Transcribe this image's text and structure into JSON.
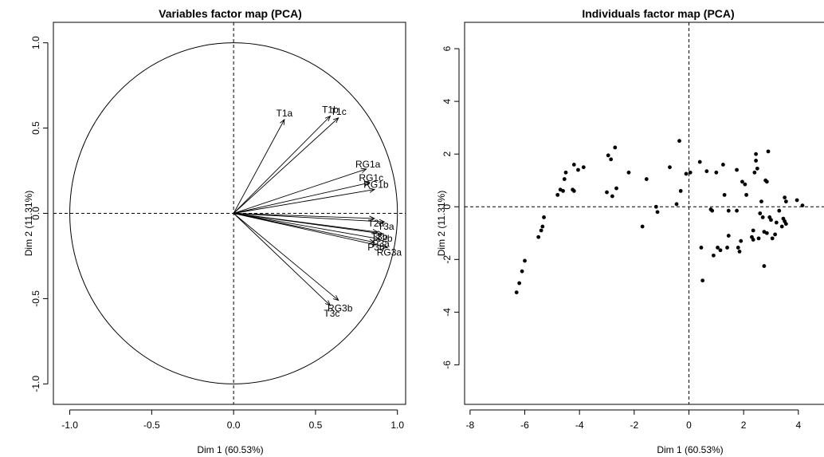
{
  "chart_data": [
    {
      "type": "scatter",
      "subtype": "pca-variables-correlation-circle",
      "title": "Variables factor map (PCA)",
      "xlabel": "Dim 1 (60.53%)",
      "ylabel": "Dim 2 (11.31%)",
      "xlim": [
        -1.1,
        1.05
      ],
      "ylim": [
        -1.12,
        1.12
      ],
      "x_ticks": [
        -1.0,
        -0.5,
        0.0,
        0.5,
        1.0
      ],
      "x_tick_labels": [
        "-1.0",
        "-0.5",
        "0.0",
        "0.5",
        "1.0"
      ],
      "y_ticks": [
        -1.0,
        -0.5,
        0.0,
        0.5,
        1.0
      ],
      "y_tick_labels": [
        "-1.0",
        "-0.5",
        "0.0",
        "0.5",
        "1.0"
      ],
      "grid": false,
      "legend": "none",
      "unit_circle": true,
      "reference_lines": [
        0,
        0
      ],
      "variables": [
        {
          "name": "T1a",
          "x": 0.31,
          "y": 0.55
        },
        {
          "name": "T1b",
          "x": 0.59,
          "y": 0.57
        },
        {
          "name": "T1c",
          "x": 0.64,
          "y": 0.56
        },
        {
          "name": "RG1a",
          "x": 0.81,
          "y": 0.26
        },
        {
          "name": "RG1c",
          "x": 0.83,
          "y": 0.18
        },
        {
          "name": "RG1b",
          "x": 0.86,
          "y": 0.14
        },
        {
          "name": "T2a",
          "x": 0.86,
          "y": -0.03
        },
        {
          "name": "T3a",
          "x": 0.92,
          "y": -0.05
        },
        {
          "name": "T3b",
          "x": 0.88,
          "y": -0.11
        },
        {
          "name": "T2b",
          "x": 0.91,
          "y": -0.12
        },
        {
          "name": "P3a",
          "x": 0.89,
          "y": -0.15
        },
        {
          "name": "P3b",
          "x": 0.86,
          "y": -0.17
        },
        {
          "name": "RG3a",
          "x": 0.94,
          "y": -0.2
        },
        {
          "name": "RG3b",
          "x": 0.64,
          "y": -0.51
        },
        {
          "name": "T3c",
          "x": 0.59,
          "y": -0.54
        }
      ]
    },
    {
      "type": "scatter",
      "title": "Individuals factor map (PCA)",
      "xlabel": "Dim 1 (60.53%)",
      "ylabel": "Dim 2 (11.31%)",
      "xlim": [
        -8.2,
        5.2
      ],
      "ylim": [
        -7.5,
        7.0
      ],
      "x_ticks": [
        -8,
        -6,
        -4,
        -2,
        0,
        2,
        4
      ],
      "x_tick_labels": [
        "-8",
        "-6",
        "-4",
        "-2",
        "0",
        "2",
        "4"
      ],
      "y_ticks": [
        -6,
        -4,
        -2,
        0,
        2,
        4,
        6
      ],
      "y_tick_labels": [
        "-6",
        "-4",
        "-2",
        "0",
        "2",
        "4",
        "6"
      ],
      "grid": false,
      "legend": "none",
      "reference_lines": [
        0,
        0
      ],
      "points": [
        [
          -6.3,
          -3.25
        ],
        [
          -6.2,
          -2.9
        ],
        [
          -6.1,
          -2.45
        ],
        [
          -6.0,
          -2.05
        ],
        [
          -5.5,
          -1.15
        ],
        [
          -5.4,
          -0.9
        ],
        [
          -5.35,
          -0.75
        ],
        [
          -5.3,
          -0.4
        ],
        [
          -4.8,
          0.45
        ],
        [
          -4.7,
          0.65
        ],
        [
          -4.6,
          0.6
        ],
        [
          -4.55,
          1.05
        ],
        [
          -4.5,
          1.3
        ],
        [
          -4.25,
          0.65
        ],
        [
          -4.2,
          0.6
        ],
        [
          -4.2,
          1.6
        ],
        [
          -4.05,
          1.4
        ],
        [
          -3.85,
          1.5
        ],
        [
          -3.0,
          0.55
        ],
        [
          -2.95,
          1.95
        ],
        [
          -2.85,
          1.8
        ],
        [
          -2.8,
          0.4
        ],
        [
          -2.7,
          2.25
        ],
        [
          -2.65,
          0.7
        ],
        [
          -2.2,
          1.3
        ],
        [
          -1.7,
          -0.75
        ],
        [
          -1.55,
          1.05
        ],
        [
          -1.2,
          0.0
        ],
        [
          -1.15,
          -0.2
        ],
        [
          -0.7,
          1.5
        ],
        [
          -0.45,
          0.1
        ],
        [
          -0.35,
          2.5
        ],
        [
          -0.3,
          0.6
        ],
        [
          -0.1,
          1.25
        ],
        [
          0.05,
          1.3
        ],
        [
          0.4,
          1.7
        ],
        [
          0.45,
          -1.55
        ],
        [
          0.5,
          -2.8
        ],
        [
          0.65,
          1.35
        ],
        [
          0.8,
          -0.1
        ],
        [
          0.85,
          -0.15
        ],
        [
          0.9,
          -1.85
        ],
        [
          1.0,
          1.3
        ],
        [
          1.05,
          -1.55
        ],
        [
          1.15,
          -1.65
        ],
        [
          1.25,
          1.6
        ],
        [
          1.3,
          0.45
        ],
        [
          1.4,
          -1.55
        ],
        [
          1.45,
          -1.1
        ],
        [
          1.45,
          -0.15
        ],
        [
          1.75,
          1.4
        ],
        [
          1.75,
          -0.15
        ],
        [
          1.8,
          -1.55
        ],
        [
          1.85,
          -1.7
        ],
        [
          1.9,
          -1.3
        ],
        [
          1.95,
          0.95
        ],
        [
          2.05,
          0.85
        ],
        [
          2.1,
          0.45
        ],
        [
          2.3,
          -1.15
        ],
        [
          2.35,
          -0.9
        ],
        [
          2.35,
          -1.25
        ],
        [
          2.4,
          1.3
        ],
        [
          2.45,
          2.0
        ],
        [
          2.45,
          1.75
        ],
        [
          2.5,
          1.45
        ],
        [
          2.55,
          -1.2
        ],
        [
          2.6,
          -0.25
        ],
        [
          2.65,
          0.2
        ],
        [
          2.7,
          -0.4
        ],
        [
          2.75,
          -0.95
        ],
        [
          2.75,
          -2.25
        ],
        [
          2.8,
          1.0
        ],
        [
          2.85,
          0.95
        ],
        [
          2.85,
          -1.0
        ],
        [
          2.9,
          2.1
        ],
        [
          2.95,
          -0.4
        ],
        [
          3.0,
          -0.5
        ],
        [
          3.05,
          -1.2
        ],
        [
          3.15,
          -1.05
        ],
        [
          3.2,
          -0.6
        ],
        [
          3.3,
          -0.15
        ],
        [
          3.4,
          -0.75
        ],
        [
          3.45,
          -0.45
        ],
        [
          3.5,
          -0.55
        ],
        [
          3.5,
          0.35
        ],
        [
          3.55,
          0.2
        ],
        [
          3.55,
          -0.65
        ],
        [
          3.95,
          0.25
        ],
        [
          4.15,
          0.05
        ]
      ]
    }
  ]
}
